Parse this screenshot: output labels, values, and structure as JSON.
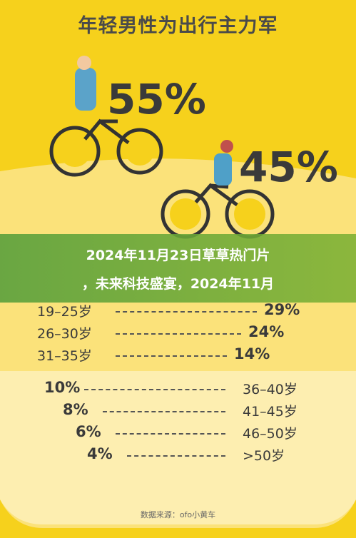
{
  "title": "年轻男性为出行主力军",
  "male_share": "55%",
  "female_share": "45%",
  "overlay": {
    "line1": "2024年11月23日草草热门片",
    "line2": "，未来科技盛宴，2024年11月"
  },
  "age_groups_upper": [
    {
      "age": "19–25岁",
      "share": "29%"
    },
    {
      "age": "26–30岁",
      "share": "24%"
    },
    {
      "age": "31–35岁",
      "share": "14%"
    }
  ],
  "age_groups_lower": [
    {
      "share": "10%",
      "age": "36–40岁"
    },
    {
      "share": "8%",
      "age": "41–45岁"
    },
    {
      "share": "6%",
      "age": "46–50岁"
    },
    {
      "share": "4%",
      "age": ">50岁"
    }
  ],
  "source": "数据来源：ofo小黄车"
}
